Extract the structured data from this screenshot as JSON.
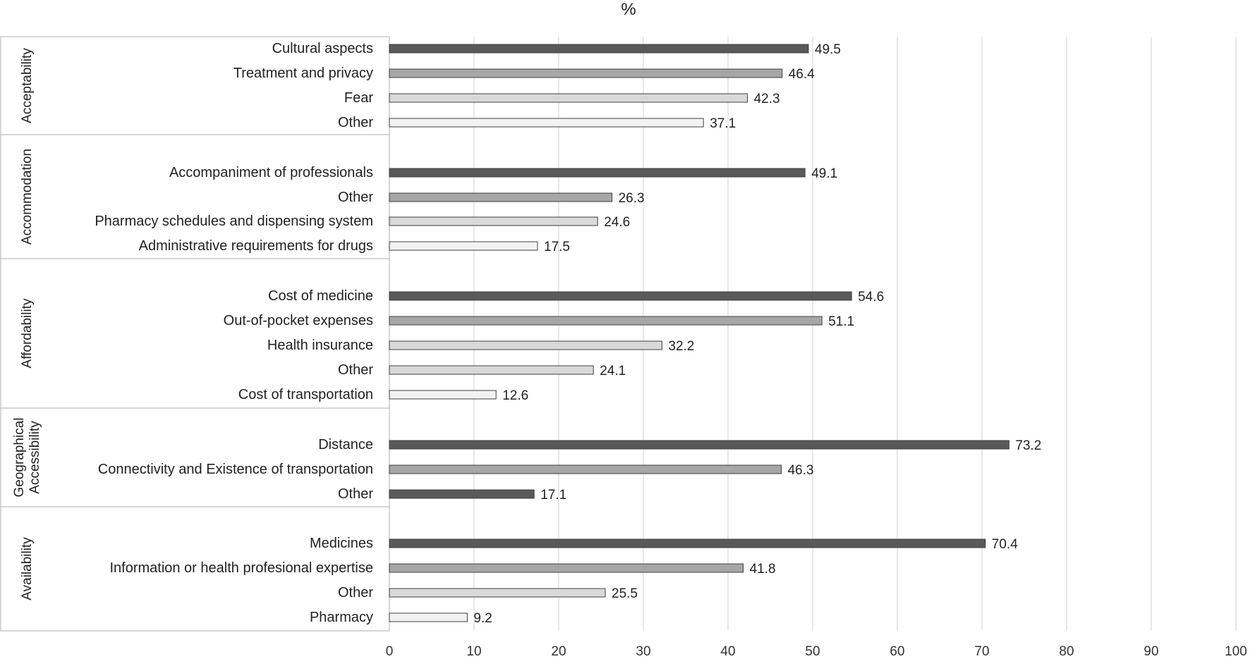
{
  "chart_data": {
    "type": "bar",
    "orientation": "horizontal",
    "title": "%",
    "xlim": [
      0,
      100
    ],
    "x_ticks": [
      0,
      10,
      20,
      30,
      40,
      50,
      60,
      70,
      80,
      90,
      100
    ],
    "grid": "vertical",
    "groups": [
      {
        "name": "Acceptability",
        "items": [
          {
            "label": "Cultural aspects",
            "value": 49.5,
            "shade": "#595959"
          },
          {
            "label": "Treatment and privacy",
            "value": 46.4,
            "shade": "#a6a6a6"
          },
          {
            "label": "Fear",
            "value": 42.3,
            "shade": "#d9d9d9"
          },
          {
            "label": "Other",
            "value": 37.1,
            "shade": "#f2f2f2"
          }
        ]
      },
      {
        "name": "Accommodation",
        "items": [
          {
            "label": "Accompaniment of professionals",
            "value": 49.1,
            "shade": "#595959"
          },
          {
            "label": "Other",
            "value": 26.3,
            "shade": "#a6a6a6"
          },
          {
            "label": "Pharmacy schedules and dispensing system",
            "value": 24.6,
            "shade": "#d9d9d9"
          },
          {
            "label": "Administrative requirements for drugs",
            "value": 17.5,
            "shade": "#f2f2f2"
          }
        ]
      },
      {
        "name": "Affordability",
        "items": [
          {
            "label": "Cost of medicine",
            "value": 54.6,
            "shade": "#595959"
          },
          {
            "label": "Out-of-pocket expenses",
            "value": 51.1,
            "shade": "#a6a6a6"
          },
          {
            "label": "Health insurance",
            "value": 32.2,
            "shade": "#d9d9d9"
          },
          {
            "label": "Other",
            "value": 24.1,
            "shade": "#d9d9d9"
          },
          {
            "label": "Cost of transportation",
            "value": 12.6,
            "shade": "#f2f2f2"
          }
        ]
      },
      {
        "name": "Geographical Accessibility",
        "name_lines": [
          "Geographical",
          "Accessibility"
        ],
        "items": [
          {
            "label": "Distance",
            "value": 73.2,
            "shade": "#595959"
          },
          {
            "label": "Connectivity and Existence of transportation",
            "value": 46.3,
            "shade": "#a6a6a6"
          },
          {
            "label": "Other",
            "value": 17.1,
            "shade": "#595959"
          }
        ]
      },
      {
        "name": "Availability",
        "items": [
          {
            "label": "Medicines",
            "value": 70.4,
            "shade": "#595959"
          },
          {
            "label": "Information or health profesional expertise",
            "value": 41.8,
            "shade": "#a6a6a6"
          },
          {
            "label": "Other",
            "value": 25.5,
            "shade": "#d9d9d9"
          },
          {
            "label": "Pharmacy",
            "value": 9.2,
            "shade": "#f2f2f2"
          }
        ]
      }
    ]
  }
}
